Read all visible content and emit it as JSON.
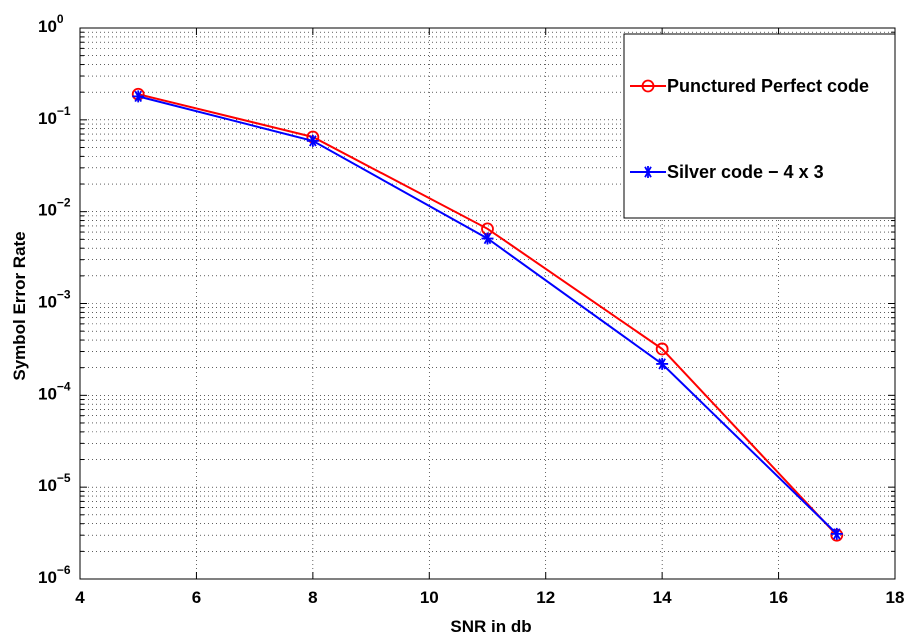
{
  "chart_data": {
    "type": "line",
    "title": "",
    "xlabel": "SNR in db",
    "ylabel": "Symbol Error Rate",
    "xlim": [
      4,
      18
    ],
    "ylim": [
      1e-06,
      1
    ],
    "yscale": "log",
    "xticks": [
      4,
      6,
      8,
      10,
      12,
      14,
      16,
      18
    ],
    "xtick_labels": [
      "4",
      "6",
      "8",
      "10",
      "12",
      "14",
      "16",
      "18"
    ],
    "yticks": [
      {
        "value": 1e-06,
        "base": "10",
        "exp": "−6"
      },
      {
        "value": 1e-05,
        "base": "10",
        "exp": "−5"
      },
      {
        "value": 0.0001,
        "base": "10",
        "exp": "−4"
      },
      {
        "value": 0.001,
        "base": "10",
        "exp": "−3"
      },
      {
        "value": 0.01,
        "base": "10",
        "exp": "−2"
      },
      {
        "value": 0.1,
        "base": "10",
        "exp": "−1"
      },
      {
        "value": 1,
        "base": "10",
        "exp": "0"
      }
    ],
    "grid": true,
    "legend": "top-right",
    "series": [
      {
        "name": "Punctured Perfect code",
        "color": "#ff0000",
        "marker": "circle",
        "x": [
          5,
          8,
          11,
          14,
          17
        ],
        "y": [
          0.19,
          0.065,
          0.0065,
          0.00032,
          3e-06
        ]
      },
      {
        "name": "Silver code − 4 x 3",
        "color": "#0000ff",
        "marker": "asterisk",
        "x": [
          5,
          8,
          11,
          14,
          17
        ],
        "y": [
          0.18,
          0.059,
          0.0051,
          0.00022,
          3.1e-06
        ]
      }
    ]
  }
}
